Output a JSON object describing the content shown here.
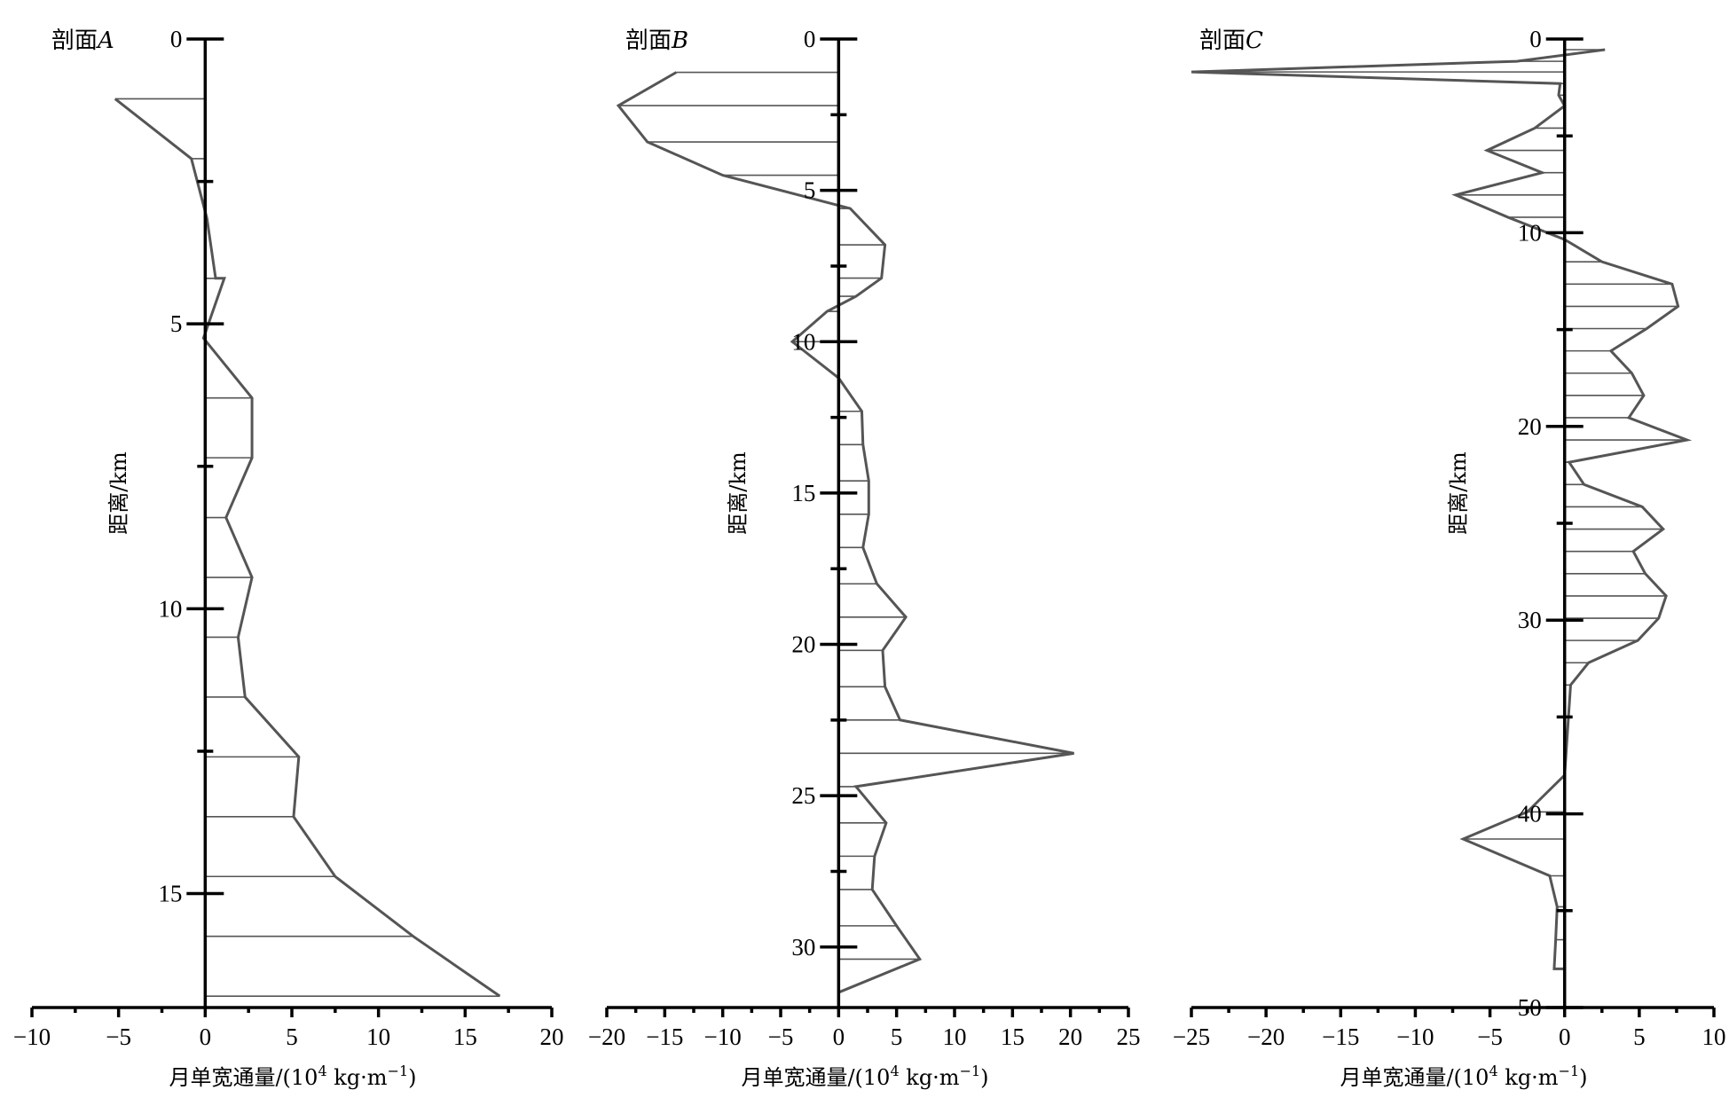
{
  "chart_data": [
    {
      "type": "line",
      "title": "剖面A",
      "title_text": "剖面",
      "title_var": "A",
      "xlabel_main": "月单宽通量/(10",
      "xlabel_sup1": "4",
      "xlabel_mid": " kg·m",
      "xlabel_sup2": "−1",
      "xlabel_end": ")",
      "ylabel": "距离/km",
      "xlim": [
        -10,
        20
      ],
      "ylim": [
        0,
        17
      ],
      "y_inverted": true,
      "x_ticks": [
        -10,
        -5,
        0,
        5,
        10,
        15,
        20
      ],
      "y_ticks": [
        0,
        5,
        10,
        15
      ],
      "grid": false,
      "points": [
        {
          "x": -5.2,
          "y": 1.05
        },
        {
          "x": -0.8,
          "y": 2.1
        },
        {
          "x": 0.1,
          "y": 3.15
        },
        {
          "x": 0.6,
          "y": 4.2
        },
        {
          "x": 1.1,
          "y": 4.2
        },
        {
          "x": -0.1,
          "y": 5.25
        },
        {
          "x": 2.7,
          "y": 6.3
        },
        {
          "x": 2.7,
          "y": 7.35
        },
        {
          "x": 1.2,
          "y": 8.4
        },
        {
          "x": 2.7,
          "y": 9.45
        },
        {
          "x": 1.9,
          "y": 10.5
        },
        {
          "x": 2.3,
          "y": 11.55
        },
        {
          "x": 5.4,
          "y": 12.6
        },
        {
          "x": 5.1,
          "y": 13.65
        },
        {
          "x": 7.5,
          "y": 14.7
        },
        {
          "x": 12.0,
          "y": 15.75
        },
        {
          "x": 17.0,
          "y": 16.8
        }
      ]
    },
    {
      "type": "line",
      "title": "剖面B",
      "title_text": "剖面",
      "title_var": "B",
      "xlabel_main": "月单宽通量/(10",
      "xlabel_sup1": "4",
      "xlabel_mid": " kg·m",
      "xlabel_sup2": "−1",
      "xlabel_end": ")",
      "ylabel": "距离/km",
      "xlim": [
        -20,
        25
      ],
      "ylim": [
        0,
        32
      ],
      "y_inverted": true,
      "x_ticks": [
        -20,
        -15,
        -10,
        -5,
        0,
        5,
        10,
        15,
        20,
        25
      ],
      "y_ticks": [
        0,
        5,
        10,
        15,
        20,
        25,
        30
      ],
      "grid": false,
      "points": [
        {
          "x": -14.0,
          "y": 1.1
        },
        {
          "x": -19.0,
          "y": 2.2
        },
        {
          "x": -16.5,
          "y": 3.4
        },
        {
          "x": -10.0,
          "y": 4.5
        },
        {
          "x": 1.0,
          "y": 5.6
        },
        {
          "x": 4.0,
          "y": 6.8
        },
        {
          "x": 3.7,
          "y": 7.9
        },
        {
          "x": 1.5,
          "y": 8.5
        },
        {
          "x": -1.0,
          "y": 9.0
        },
        {
          "x": -4.0,
          "y": 10.0
        },
        {
          "x": 0.0,
          "y": 11.2
        },
        {
          "x": 2.0,
          "y": 12.3
        },
        {
          "x": 2.1,
          "y": 13.4
        },
        {
          "x": 2.6,
          "y": 14.6
        },
        {
          "x": 2.6,
          "y": 15.7
        },
        {
          "x": 2.1,
          "y": 16.8
        },
        {
          "x": 3.3,
          "y": 18.0
        },
        {
          "x": 5.8,
          "y": 19.1
        },
        {
          "x": 3.8,
          "y": 20.2
        },
        {
          "x": 4.0,
          "y": 21.4
        },
        {
          "x": 5.3,
          "y": 22.5
        },
        {
          "x": 20.3,
          "y": 23.6
        },
        {
          "x": 1.5,
          "y": 24.7
        },
        {
          "x": 4.1,
          "y": 25.9
        },
        {
          "x": 3.1,
          "y": 27.0
        },
        {
          "x": 2.9,
          "y": 28.1
        },
        {
          "x": 5.0,
          "y": 29.3
        },
        {
          "x": 7.0,
          "y": 30.4
        },
        {
          "x": 0.0,
          "y": 31.5
        }
      ]
    },
    {
      "type": "line",
      "title": "剖面C",
      "title_text": "剖面",
      "title_var": "C",
      "xlabel_main": "月单宽通量/(10",
      "xlabel_sup1": "4",
      "xlabel_mid": " kg·m",
      "xlabel_sup2": "−1",
      "xlabel_end": ")",
      "ylabel": "距离/km",
      "xlim": [
        -25,
        10
      ],
      "ylim": [
        0,
        50
      ],
      "y_inverted": true,
      "x_ticks": [
        -25,
        -20,
        -15,
        -10,
        -5,
        0,
        5,
        10
      ],
      "y_ticks": [
        0,
        10,
        20,
        30,
        40,
        50
      ],
      "grid": false,
      "points": [
        {
          "x": 2.7,
          "y": 0.55
        },
        {
          "x": -3.2,
          "y": 1.15
        },
        {
          "x": -25.0,
          "y": 1.7
        },
        {
          "x": -0.3,
          "y": 2.3
        },
        {
          "x": -0.4,
          "y": 2.9
        },
        {
          "x": 0.0,
          "y": 3.45
        },
        {
          "x": -2.0,
          "y": 4.6
        },
        {
          "x": -5.2,
          "y": 5.75
        },
        {
          "x": -1.5,
          "y": 6.9
        },
        {
          "x": -7.3,
          "y": 8.05
        },
        {
          "x": -3.8,
          "y": 9.2
        },
        {
          "x": 0.0,
          "y": 10.35
        },
        {
          "x": 2.5,
          "y": 11.5
        },
        {
          "x": 7.2,
          "y": 12.65
        },
        {
          "x": 7.6,
          "y": 13.8
        },
        {
          "x": 5.5,
          "y": 14.95
        },
        {
          "x": 3.1,
          "y": 16.1
        },
        {
          "x": 4.5,
          "y": 17.25
        },
        {
          "x": 5.3,
          "y": 18.4
        },
        {
          "x": 4.3,
          "y": 19.55
        },
        {
          "x": 8.2,
          "y": 20.7
        },
        {
          "x": 0.3,
          "y": 21.85
        },
        {
          "x": 1.3,
          "y": 23.0
        },
        {
          "x": 5.2,
          "y": 24.15
        },
        {
          "x": 6.6,
          "y": 25.3
        },
        {
          "x": 4.6,
          "y": 26.45
        },
        {
          "x": 5.4,
          "y": 27.6
        },
        {
          "x": 6.8,
          "y": 28.75
        },
        {
          "x": 6.3,
          "y": 29.9
        },
        {
          "x": 4.9,
          "y": 31.05
        },
        {
          "x": 1.6,
          "y": 32.2
        },
        {
          "x": 0.4,
          "y": 33.35
        },
        {
          "x": 0.0,
          "y": 38.0
        },
        {
          "x": -2.5,
          "y": 39.9
        },
        {
          "x": -6.8,
          "y": 41.3
        },
        {
          "x": -1.0,
          "y": 43.2
        },
        {
          "x": -0.5,
          "y": 44.8
        },
        {
          "x": -0.6,
          "y": 46.5
        },
        {
          "x": -0.7,
          "y": 48.0
        },
        {
          "x": 0.0,
          "y": 48.0
        }
      ]
    }
  ]
}
